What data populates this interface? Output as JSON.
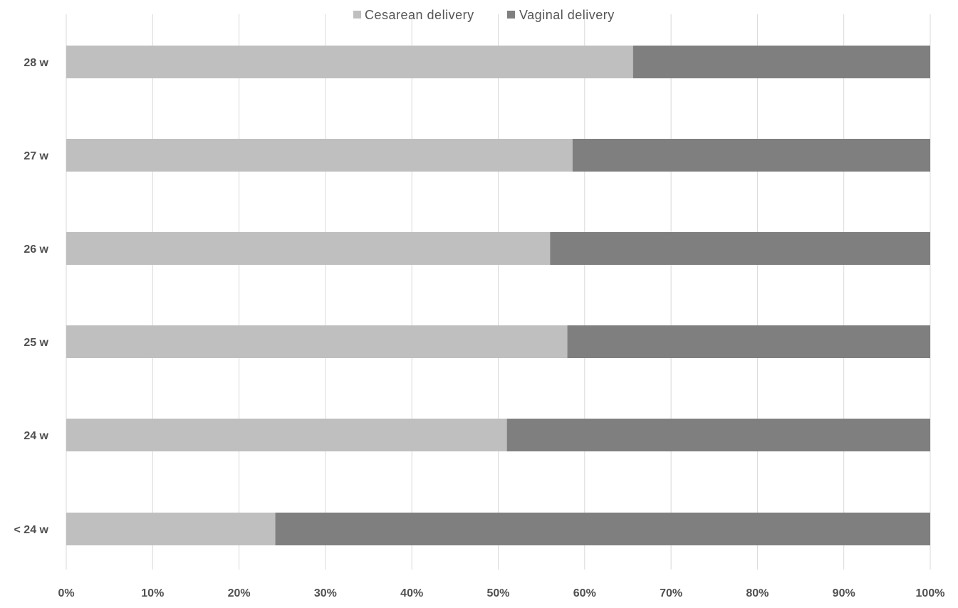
{
  "chart_data": {
    "type": "bar",
    "orientation": "horizontal",
    "stacked": "percent",
    "categories": [
      "28 w",
      "27 w",
      "26 w",
      "25 w",
      "24 w",
      "< 24 w"
    ],
    "series": [
      {
        "name": "Cesarean delivery",
        "values": [
          65.6,
          58.6,
          56.0,
          58.0,
          51.0,
          24.2
        ]
      },
      {
        "name": "Vaginal delivery",
        "values": [
          34.4,
          41.4,
          44.0,
          42.0,
          49.0,
          75.8
        ]
      }
    ],
    "colors": {
      "Cesarean delivery": "#bfbfbf",
      "Vaginal delivery": "#7f7f7f"
    },
    "xticks": [
      "0%",
      "10%",
      "20%",
      "30%",
      "40%",
      "50%",
      "60%",
      "70%",
      "80%",
      "90%",
      "100%"
    ],
    "xlim": [
      0,
      100
    ],
    "grid": true,
    "legend_position": "top-center",
    "title": "",
    "xlabel": "",
    "ylabel": ""
  }
}
